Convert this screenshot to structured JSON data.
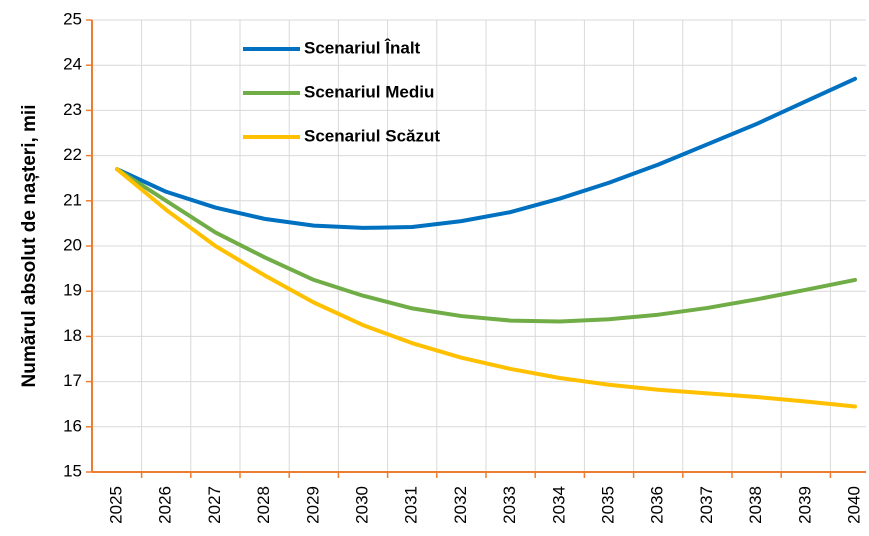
{
  "chart_data": {
    "type": "line",
    "y_label": "Numărul absolut de nașteri, mii",
    "categories": [
      "2025",
      "2026",
      "2027",
      "2028",
      "2029",
      "2030",
      "2031",
      "2032",
      "2033",
      "2034",
      "2035",
      "2036",
      "2037",
      "2038",
      "2039",
      "2040"
    ],
    "series": [
      {
        "name": "Scenariul Înalt",
        "color": "#0070c0",
        "values": [
          21.7,
          21.2,
          20.85,
          20.6,
          20.45,
          20.4,
          20.42,
          20.55,
          20.75,
          21.05,
          21.4,
          21.8,
          22.25,
          22.7,
          23.2,
          23.7
        ]
      },
      {
        "name": "Scenariul Mediu",
        "color": "#70ad47",
        "values": [
          21.7,
          21.0,
          20.3,
          19.75,
          19.25,
          18.9,
          18.62,
          18.45,
          18.35,
          18.33,
          18.38,
          18.48,
          18.63,
          18.82,
          19.03,
          19.25
        ]
      },
      {
        "name": "Scenariul Scăzut",
        "color": "#ffc000",
        "values": [
          21.7,
          20.8,
          20.0,
          19.35,
          18.75,
          18.25,
          17.85,
          17.53,
          17.28,
          17.08,
          16.93,
          16.82,
          16.74,
          16.66,
          16.56,
          16.45
        ]
      }
    ],
    "ylim": [
      15,
      25
    ],
    "yticks": [
      15,
      16,
      17,
      18,
      19,
      20,
      21,
      22,
      23,
      24,
      25
    ],
    "grid": true
  }
}
